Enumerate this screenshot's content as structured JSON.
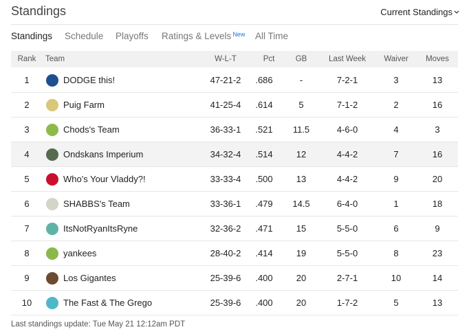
{
  "header": {
    "title": "Standings",
    "dropdown": "Current Standings"
  },
  "tabs": [
    {
      "label": "Standings"
    },
    {
      "label": "Schedule"
    },
    {
      "label": "Playoffs"
    },
    {
      "label": "Ratings & Levels",
      "badge": "New"
    },
    {
      "label": "All Time"
    }
  ],
  "table": {
    "columns": [
      "Rank",
      "Team",
      "W-L-T",
      "Pct",
      "GB",
      "Last Week",
      "Waiver",
      "Moves"
    ],
    "rows": [
      [
        1,
        "DODGE this!",
        "47-21-2",
        ".686",
        "-",
        "7-2-1",
        3,
        13
      ],
      [
        2,
        "Puig Farm",
        "41-25-4",
        ".614",
        5,
        "7-1-2",
        2,
        16
      ],
      [
        3,
        "Chods's Team",
        "36-33-1",
        ".521",
        11.5,
        "4-6-0",
        4,
        3
      ],
      [
        4,
        "Ondskans Imperium",
        "34-32-4",
        ".514",
        12,
        "4-4-2",
        7,
        16
      ],
      [
        5,
        "Who's Your Vladdy?!",
        "33-33-4",
        ".500",
        13,
        "4-4-2",
        9,
        20
      ],
      [
        6,
        "SHABBS's Team",
        "33-36-1",
        ".479",
        14.5,
        "6-4-0",
        1,
        18
      ],
      [
        7,
        "ItsNotRyanItsRyne",
        "32-36-2",
        ".471",
        15,
        "5-5-0",
        6,
        9
      ],
      [
        8,
        "yankees",
        "28-40-2",
        ".414",
        19,
        "5-5-0",
        8,
        23
      ],
      [
        9,
        "Los Gigantes",
        "25-39-6",
        ".400",
        20,
        "2-7-1",
        10,
        14
      ],
      [
        10,
        "The Fast & The Grego",
        "25-39-6",
        ".400",
        20,
        "1-7-2",
        5,
        13
      ]
    ]
  },
  "footer": "Last standings update: Tue May 21 12:12am PDT"
}
